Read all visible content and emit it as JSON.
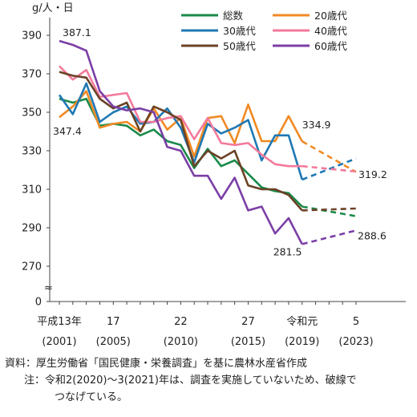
{
  "chart_data": {
    "type": "line",
    "unit_label": "g/人・日",
    "x": [
      2001,
      2002,
      2003,
      2004,
      2005,
      2006,
      2007,
      2008,
      2009,
      2010,
      2011,
      2012,
      2013,
      2014,
      2015,
      2016,
      2017,
      2018,
      2019,
      2020,
      2021,
      2022,
      2023
    ],
    "ylim": [
      265,
      392
    ],
    "yticks": [
      270,
      290,
      310,
      330,
      350,
      370,
      390
    ],
    "y_bottom_label": "0",
    "axis_break": "≈",
    "gap_years": [
      2020,
      2021
    ],
    "line_style_in_gap": "dashed",
    "x_tick_labels": [
      {
        "x": 2001,
        "top": "平成13年",
        "bottom": "(2001)"
      },
      {
        "x": 2005,
        "top": "17",
        "bottom": "(2005)"
      },
      {
        "x": 2010,
        "top": "22",
        "bottom": "(2010)"
      },
      {
        "x": 2015,
        "top": "27",
        "bottom": "(2015)"
      },
      {
        "x": 2019,
        "top": "令和元",
        "bottom": "(2019)"
      },
      {
        "x": 2023,
        "top": "5",
        "bottom": "(2023)"
      }
    ],
    "series": [
      {
        "name": "総数",
        "color": "#1a8a4a",
        "values": [
          357,
          355,
          357,
          343,
          344,
          343,
          338,
          341,
          335,
          333,
          321,
          331,
          322,
          325,
          318,
          311,
          309,
          308,
          301,
          null,
          null,
          null,
          296
        ]
      },
      {
        "name": "20歳代",
        "color": "#f08a24",
        "values": [
          347.4,
          353,
          361,
          342,
          344,
          345,
          340,
          352,
          341,
          347,
          327,
          347,
          348,
          334,
          354,
          335,
          335,
          348,
          334.9,
          null,
          null,
          null,
          319
        ]
      },
      {
        "name": "30歳代",
        "color": "#1f78b4",
        "values": [
          359,
          349,
          365,
          345,
          350,
          353,
          344,
          345,
          352,
          342,
          324,
          344,
          339,
          342,
          346,
          325,
          338,
          338,
          315,
          null,
          null,
          null,
          326
        ]
      },
      {
        "name": "40歳代",
        "color": "#f37a9b",
        "values": [
          374,
          367,
          372,
          358,
          359,
          360,
          345,
          345,
          347,
          348,
          336,
          347,
          334,
          333,
          334,
          328,
          323,
          322,
          322,
          null,
          null,
          null,
          319.2
        ]
      },
      {
        "name": "50歳代",
        "color": "#6b4226",
        "values": [
          371,
          369,
          368,
          357,
          352,
          355,
          340,
          353,
          350,
          346,
          322,
          330,
          326,
          330,
          312,
          310,
          310,
          307,
          299,
          null,
          null,
          null,
          300
        ]
      },
      {
        "name": "60歳代",
        "color": "#7b3fa6",
        "values": [
          387.1,
          385,
          382,
          361,
          353,
          351,
          352,
          350,
          332,
          330,
          317,
          317,
          305,
          316,
          299,
          301,
          287,
          295,
          281.5,
          null,
          null,
          null,
          288.6
        ]
      }
    ],
    "annotations": [
      {
        "text": "387.1",
        "x": 2001,
        "y": 387.1
      },
      {
        "text": "347.4",
        "x": 2001,
        "y": 347.4
      },
      {
        "text": "334.9",
        "x": 2019,
        "y": 334.9
      },
      {
        "text": "319.2",
        "x": 2023,
        "y": 319.2
      },
      {
        "text": "281.5",
        "x": 2019,
        "y": 281.5
      },
      {
        "text": "288.6",
        "x": 2023,
        "y": 288.6
      }
    ]
  },
  "notes": {
    "source": "資料：厚生労働省「国民健康・栄養調査」を基に農林水産省作成",
    "note_line1": "注：令和2(2020)〜3(2021)年は、調査を実施していないため、破線で",
    "note_line2": "つなげている。"
  }
}
